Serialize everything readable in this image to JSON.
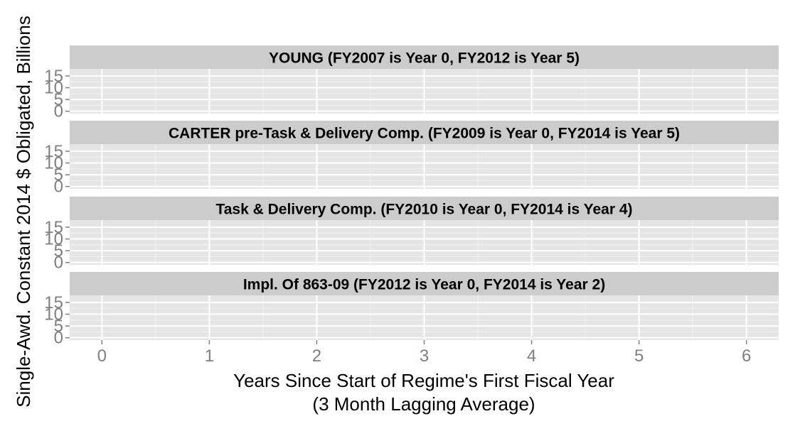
{
  "chart_data": {
    "type": "line",
    "ylabel": "Single-Awd. Constant 2014 $ Obligated, Billions",
    "xlabel_lines": [
      "Years Since Start of Regime's First Fiscal Year",
      "(3 Month Lagging Average)"
    ],
    "x_ticks": [
      "0",
      "1",
      "2",
      "3",
      "4",
      "5",
      "6"
    ],
    "y_ticks": [
      "0",
      "5",
      "10",
      "15"
    ],
    "xlim": [
      -0.3,
      6.3
    ],
    "ylim": [
      -1,
      18
    ],
    "grid": true,
    "facets": [
      {
        "title": "YOUNG (FY2007 is Year 0, FY2012 is Year 5)",
        "series": []
      },
      {
        "title": "CARTER pre-Task & Delivery Comp. (FY2009 is Year 0, FY2014 is Year 5)",
        "series": []
      },
      {
        "title": "Task & Delivery Comp. (FY2010 is Year 0, FY2014 is Year 4)",
        "series": []
      },
      {
        "title": "Impl. Of 863-09 (FY2012 is Year 0, FY2014 is Year 2)",
        "series": []
      }
    ],
    "colors": {
      "panel_bg": "#E5E5E5",
      "strip_bg": "#CCCCCC",
      "grid_major": "#FFFFFF",
      "grid_minor": "#F2F2F2",
      "tick_text": "#7F7F7F",
      "title_text": "#000000"
    }
  }
}
